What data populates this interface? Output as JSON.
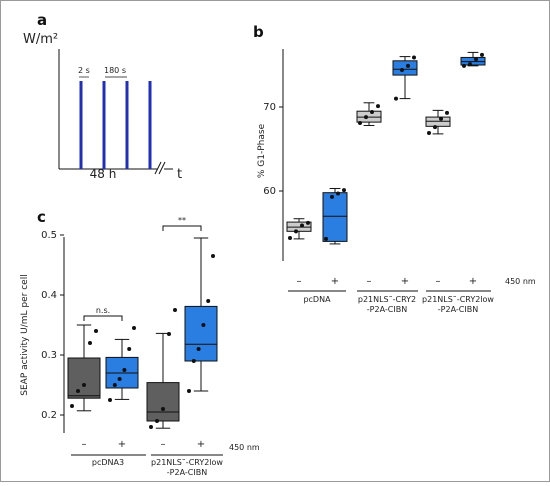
{
  "panels": {
    "a": {
      "letter": "a",
      "y_unit": "W/m²",
      "pulse_label": "2 s",
      "interval_label": "180 s",
      "duration_label": "48 h",
      "x_unit": "t"
    },
    "b": {
      "letter": "b",
      "ylabel": "% G1-Phase",
      "y_ticks": [
        "60",
        "70"
      ],
      "signs": [
        "–",
        "+",
        "–",
        "+",
        "–",
        "+"
      ],
      "wavelength": "450 nm",
      "group_labels": [
        [
          "pcDNA"
        ],
        [
          "p21NLS˜-CRY2",
          "-P2A-CIBN"
        ],
        [
          "p21NLS˜-CRY2low",
          "-P2A-CIBN"
        ]
      ]
    },
    "c": {
      "letter": "c",
      "ylabel": "SEAP activity U/mL per cell",
      "y_ticks": [
        "0.2",
        "0.3",
        "0.4",
        "0.5"
      ],
      "signs": [
        "–",
        "+",
        "–",
        "+"
      ],
      "wavelength": "450 nm",
      "sig_labels": [
        "n.s.",
        "**"
      ],
      "group_labels": [
        [
          "pcDNA3"
        ],
        [
          "p21NLS˜-CRY2low",
          "-P2A-CIBN"
        ]
      ]
    }
  },
  "chart_data": [
    {
      "panel": "a",
      "type": "line",
      "description_shown": "light pulse scheme",
      "pulses": 4
    },
    {
      "panel": "b",
      "type": "box",
      "ylabel": "% G1-Phase",
      "ylim": [
        54,
        77
      ],
      "boxes": [
        {
          "group": "pcDNA",
          "light": "–",
          "color": "#cccccc",
          "whisker_low": 54.3,
          "q1": 55.2,
          "median": 55.7,
          "q3": 56.3,
          "whisker_high": 56.7,
          "points": [
            54.4,
            55.2,
            55.9,
            56.2
          ]
        },
        {
          "group": "pcDNA",
          "light": "+",
          "color": "#2a7de1",
          "whisker_low": 53.7,
          "q1": 54.0,
          "median": 57.0,
          "q3": 59.8,
          "whisker_high": 60.3,
          "points": [
            54.3,
            59.3,
            59.7,
            60.1
          ]
        },
        {
          "group": "p21NLS-CRY2-P2A-CIBN",
          "light": "–",
          "color": "#cccccc",
          "whisker_low": 67.8,
          "q1": 68.2,
          "median": 68.8,
          "q3": 69.5,
          "whisker_high": 70.5,
          "points": [
            68.1,
            68.8,
            69.4,
            70.1
          ]
        },
        {
          "group": "p21NLS-CRY2-P2A-CIBN",
          "light": "+",
          "color": "#2a7de1",
          "whisker_low": 71.0,
          "q1": 73.8,
          "median": 74.5,
          "q3": 75.5,
          "whisker_high": 76.0,
          "points": [
            71.0,
            74.4,
            74.9,
            75.9
          ]
        },
        {
          "group": "p21NLS-CRY2low-P2A-CIBN",
          "light": "–",
          "color": "#cccccc",
          "whisker_low": 66.8,
          "q1": 67.7,
          "median": 68.3,
          "q3": 68.8,
          "whisker_high": 69.6,
          "points": [
            66.9,
            67.6,
            68.6,
            69.3
          ]
        },
        {
          "group": "p21NLS-CRY2low-P2A-CIBN",
          "light": "+",
          "color": "#2a7de1",
          "whisker_low": 74.9,
          "q1": 75.0,
          "median": 75.4,
          "q3": 75.9,
          "whisker_high": 76.5,
          "points": [
            74.9,
            75.1,
            75.7,
            76.2
          ]
        }
      ]
    },
    {
      "panel": "c",
      "type": "box",
      "ylabel": "SEAP activity U/mL per cell",
      "ylim": [
        0.17,
        0.55
      ],
      "boxes": [
        {
          "group": "pcDNA3",
          "light": "–",
          "color": "#5f5f5f",
          "whisker_low": 0.207,
          "q1": 0.228,
          "median": 0.232,
          "q3": 0.295,
          "whisker_high": 0.35,
          "points": [
            0.215,
            0.24,
            0.25,
            0.32,
            0.34
          ]
        },
        {
          "group": "pcDNA3",
          "light": "+",
          "color": "#2a7de1",
          "whisker_low": 0.226,
          "q1": 0.245,
          "median": 0.27,
          "q3": 0.296,
          "whisker_high": 0.326,
          "points": [
            0.225,
            0.25,
            0.26,
            0.275,
            0.31,
            0.345
          ]
        },
        {
          "group": "p21NLS-CRY2low-P2A-CIBN",
          "light": "–",
          "color": "#5f5f5f",
          "whisker_low": 0.178,
          "q1": 0.19,
          "median": 0.205,
          "q3": 0.254,
          "whisker_high": 0.336,
          "points": [
            0.18,
            0.19,
            0.21,
            0.335,
            0.375
          ]
        },
        {
          "group": "p21NLS-CRY2low-P2A-CIBN",
          "light": "+",
          "color": "#2a7de1",
          "whisker_low": 0.24,
          "q1": 0.29,
          "median": 0.318,
          "q3": 0.381,
          "whisker_high": 0.495,
          "points": [
            0.24,
            0.29,
            0.31,
            0.35,
            0.39,
            0.465
          ]
        }
      ]
    }
  ]
}
